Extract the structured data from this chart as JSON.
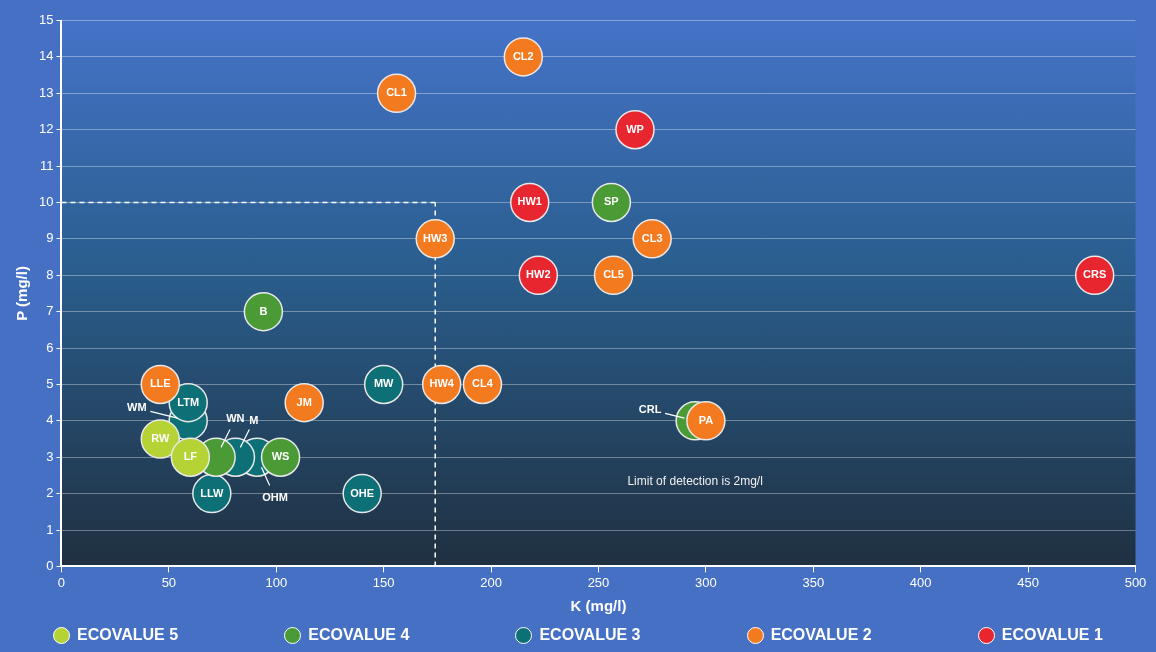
{
  "chart_data": {
    "type": "scatter",
    "xlabel": "K (mg/l)",
    "ylabel": "P (mg/l)",
    "xlim": [
      0,
      500
    ],
    "xticks": [
      0,
      50,
      100,
      150,
      200,
      250,
      300,
      350,
      400,
      450,
      500
    ],
    "ylim": [
      0,
      15
    ],
    "yticks": [
      0,
      1,
      2,
      3,
      4,
      5,
      6,
      7,
      8,
      9,
      10,
      11,
      12,
      13,
      14,
      15
    ],
    "grid": "y",
    "legend": "bottom",
    "marker": "circle",
    "series": [
      {
        "name": "ECOVALUE 5",
        "color": "#b5d334",
        "x": [
          46,
          60
        ],
        "values": [
          3.5,
          3
        ],
        "value_labels": [
          "RW",
          "LF"
        ]
      },
      {
        "name": "ECOVALUE 4",
        "color": "#4a9a35",
        "x": [
          94,
          256,
          72,
          102,
          295
        ],
        "values": [
          7,
          10,
          3,
          3,
          4
        ],
        "value_labels": [
          "B",
          "SP",
          "WN",
          "WS",
          "CRL"
        ]
      },
      {
        "name": "ECOVALUE 3",
        "color": "#0e7077",
        "x": [
          59,
          59,
          91,
          81,
          70,
          150,
          140
        ],
        "values": [
          4,
          4.5,
          3,
          3,
          2,
          5,
          2
        ],
        "value_labels": [
          "WM",
          "LTM",
          "OHM",
          "M",
          "LLW",
          "MW",
          "OHE"
        ]
      },
      {
        "name": "ECOVALUE 2",
        "color": "#f47a20",
        "x": [
          46,
          113,
          156,
          215,
          174,
          275,
          257,
          177,
          196,
          300
        ],
        "values": [
          5,
          4.5,
          13,
          14,
          9,
          9,
          8,
          5,
          5,
          4
        ],
        "value_labels": [
          "LLE",
          "JM",
          "CL1",
          "CL2",
          "HW3",
          "CL3",
          "CL5",
          "HW4",
          "CL4",
          "PA"
        ]
      },
      {
        "name": "ECOVALUE 1",
        "color": "#e8262f",
        "x": [
          267,
          218,
          222,
          481
        ],
        "values": [
          12,
          10,
          8,
          8
        ],
        "value_labels": [
          "WP",
          "HW1",
          "HW2",
          "CRS"
        ]
      }
    ],
    "ref_lines": [
      {
        "axis": "x",
        "value": 174,
        "color": "#ffffff",
        "line_style": "dashed"
      },
      {
        "axis": "y",
        "value": 10,
        "color": "#ffffff",
        "line_style": "dashed"
      }
    ],
    "annotations": [
      "Limit of detection is 2mg/l"
    ]
  }
}
